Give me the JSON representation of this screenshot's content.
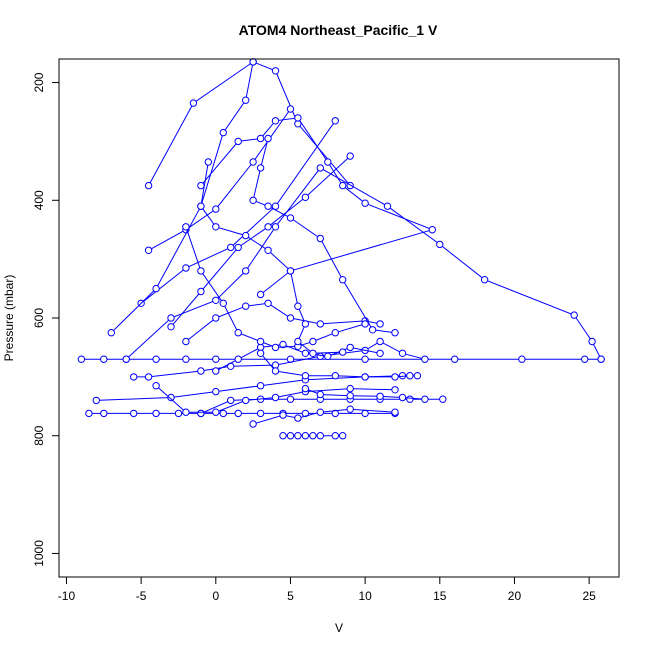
{
  "chart_data": {
    "type": "scatter",
    "title": "ATOM4 Northeast_Pacific_1 V",
    "xlabel": "V",
    "ylabel": "Pressure (mbar)",
    "xlim": [
      -10.5,
      27
    ],
    "ylim": [
      1040,
      160
    ],
    "y_reversed": true,
    "x_ticks": [
      -10,
      -5,
      0,
      5,
      10,
      15,
      20,
      25
    ],
    "y_ticks": [
      200,
      400,
      600,
      800,
      1000
    ],
    "color": "#0000ff",
    "series": [
      {
        "values": [
          [
            -4.5,
            375
          ],
          [
            -1.5,
            235
          ],
          [
            2.5,
            165
          ],
          [
            4,
            180
          ],
          [
            5.5,
            270
          ],
          [
            9,
            375
          ]
        ]
      },
      {
        "values": [
          [
            -5,
            575
          ],
          [
            -2,
            515
          ],
          [
            1,
            480
          ],
          [
            4,
            410
          ],
          [
            8,
            265
          ]
        ]
      },
      {
        "values": [
          [
            -4.5,
            485
          ],
          [
            -2,
            450
          ],
          [
            0,
            415
          ],
          [
            2.5,
            335
          ],
          [
            5,
            245
          ]
        ]
      },
      {
        "values": [
          [
            -3,
            615
          ],
          [
            -1,
            555
          ],
          [
            1.5,
            480
          ],
          [
            3.5,
            445
          ],
          [
            6,
            395
          ],
          [
            9,
            325
          ]
        ]
      },
      {
        "values": [
          [
            -7,
            625
          ],
          [
            -4,
            550
          ],
          [
            -1,
            410
          ],
          [
            0.5,
            285
          ],
          [
            2,
            230
          ],
          [
            2.5,
            165
          ]
        ]
      },
      {
        "values": [
          [
            -6,
            670
          ],
          [
            -3,
            600
          ],
          [
            0,
            570
          ],
          [
            2,
            520
          ],
          [
            4,
            445
          ],
          [
            7,
            345
          ],
          [
            11.5,
            410
          ],
          [
            15,
            475
          ],
          [
            18,
            535
          ],
          [
            24,
            595
          ],
          [
            25.2,
            640
          ],
          [
            25.8,
            670
          ]
        ]
      },
      {
        "values": [
          [
            -9,
            670
          ],
          [
            -7.5,
            670
          ],
          [
            -6,
            670
          ],
          [
            -4,
            670
          ],
          [
            -2,
            670
          ],
          [
            0,
            670
          ],
          [
            5,
            670
          ],
          [
            10,
            670
          ],
          [
            16,
            670
          ],
          [
            20.5,
            670
          ],
          [
            24.7,
            670
          ],
          [
            25.8,
            670
          ]
        ]
      },
      {
        "values": [
          [
            -5.5,
            700
          ],
          [
            -4.5,
            700
          ],
          [
            -1,
            690
          ],
          [
            1,
            682
          ],
          [
            4,
            680
          ],
          [
            7,
            665
          ],
          [
            10,
            655
          ],
          [
            11,
            640
          ],
          [
            12.5,
            660
          ],
          [
            14,
            670
          ]
        ]
      },
      {
        "values": [
          [
            -8,
            740
          ],
          [
            -3,
            735
          ],
          [
            0,
            725
          ],
          [
            3,
            715
          ],
          [
            6,
            705
          ],
          [
            10,
            700
          ],
          [
            12.5,
            698
          ],
          [
            13.5,
            698
          ]
        ]
      },
      {
        "values": [
          [
            -8.5,
            762
          ],
          [
            -7.5,
            762
          ],
          [
            -5.5,
            762
          ],
          [
            -4,
            762
          ],
          [
            -2.5,
            762
          ],
          [
            -1,
            762
          ],
          [
            0.5,
            762
          ],
          [
            1.5,
            762
          ],
          [
            3,
            762
          ],
          [
            4.5,
            762
          ],
          [
            6,
            762
          ],
          [
            8,
            762
          ],
          [
            10,
            762
          ],
          [
            12,
            762
          ]
        ]
      },
      {
        "values": [
          [
            -1,
            762
          ],
          [
            1,
            740
          ],
          [
            3,
            738
          ],
          [
            5,
            738
          ],
          [
            7,
            738
          ],
          [
            9,
            738
          ],
          [
            11,
            738
          ],
          [
            13,
            738
          ],
          [
            15.2,
            738
          ]
        ]
      },
      {
        "values": [
          [
            -4,
            715
          ],
          [
            -2,
            760
          ],
          [
            0,
            760
          ],
          [
            2,
            740
          ],
          [
            4,
            735
          ],
          [
            6,
            725
          ],
          [
            9,
            720
          ],
          [
            12,
            722
          ]
        ]
      },
      {
        "values": [
          [
            2.5,
            780
          ],
          [
            4.5,
            765
          ],
          [
            5.5,
            770
          ],
          [
            7,
            760
          ],
          [
            9,
            755
          ],
          [
            12,
            760
          ]
        ]
      },
      {
        "values": [
          [
            4.5,
            800
          ],
          [
            5,
            800
          ],
          [
            5.5,
            800
          ],
          [
            6,
            800
          ],
          [
            6.5,
            800
          ],
          [
            7,
            800
          ],
          [
            8,
            800
          ],
          [
            8.5,
            800
          ]
        ]
      },
      {
        "values": [
          [
            -1,
            375
          ],
          [
            1.5,
            300
          ],
          [
            3,
            295
          ],
          [
            4,
            265
          ],
          [
            5.5,
            260
          ],
          [
            7.5,
            335
          ],
          [
            8.5,
            375
          ],
          [
            10,
            405
          ],
          [
            14.5,
            450
          ],
          [
            5,
            520
          ],
          [
            3,
            560
          ]
        ]
      },
      {
        "values": [
          [
            -2,
            640
          ],
          [
            0,
            600
          ],
          [
            2,
            580
          ],
          [
            3.5,
            575
          ],
          [
            5,
            600
          ],
          [
            7,
            610
          ],
          [
            10,
            605
          ],
          [
            11,
            610
          ]
        ]
      },
      {
        "values": [
          [
            0,
            690
          ],
          [
            1.5,
            670
          ],
          [
            3,
            650
          ],
          [
            4.5,
            645
          ],
          [
            6,
            660
          ],
          [
            7.5,
            665
          ],
          [
            9,
            650
          ],
          [
            11,
            660
          ]
        ]
      },
      {
        "values": [
          [
            -2,
            445
          ],
          [
            -1,
            520
          ],
          [
            0.5,
            575
          ],
          [
            1.5,
            625
          ],
          [
            3,
            640
          ],
          [
            4,
            650
          ],
          [
            5.5,
            648
          ],
          [
            6.5,
            640
          ],
          [
            8,
            625
          ],
          [
            10,
            610
          ]
        ]
      },
      {
        "values": [
          [
            -0.5,
            335
          ],
          [
            -1,
            410
          ],
          [
            0,
            445
          ],
          [
            2,
            460
          ],
          [
            3.5,
            485
          ],
          [
            5,
            520
          ],
          [
            5.5,
            580
          ],
          [
            6,
            610
          ],
          [
            5.5,
            640
          ],
          [
            6.5,
            660
          ],
          [
            8.5,
            658
          ]
        ]
      },
      {
        "values": [
          [
            3,
            660
          ],
          [
            4,
            690
          ],
          [
            6,
            698
          ],
          [
            8,
            698
          ],
          [
            10,
            700
          ],
          [
            12,
            700
          ],
          [
            13,
            698
          ]
        ]
      },
      {
        "values": [
          [
            6,
            720
          ],
          [
            7,
            730
          ],
          [
            9,
            732
          ],
          [
            11,
            733
          ],
          [
            12.5,
            735
          ],
          [
            14,
            738
          ]
        ]
      },
      {
        "values": [
          [
            3.5,
            295
          ],
          [
            3,
            345
          ],
          [
            2.5,
            400
          ],
          [
            3.5,
            410
          ],
          [
            5,
            430
          ],
          [
            7,
            465
          ],
          [
            8.5,
            535
          ],
          [
            10.5,
            620
          ],
          [
            12,
            625
          ]
        ]
      }
    ]
  }
}
